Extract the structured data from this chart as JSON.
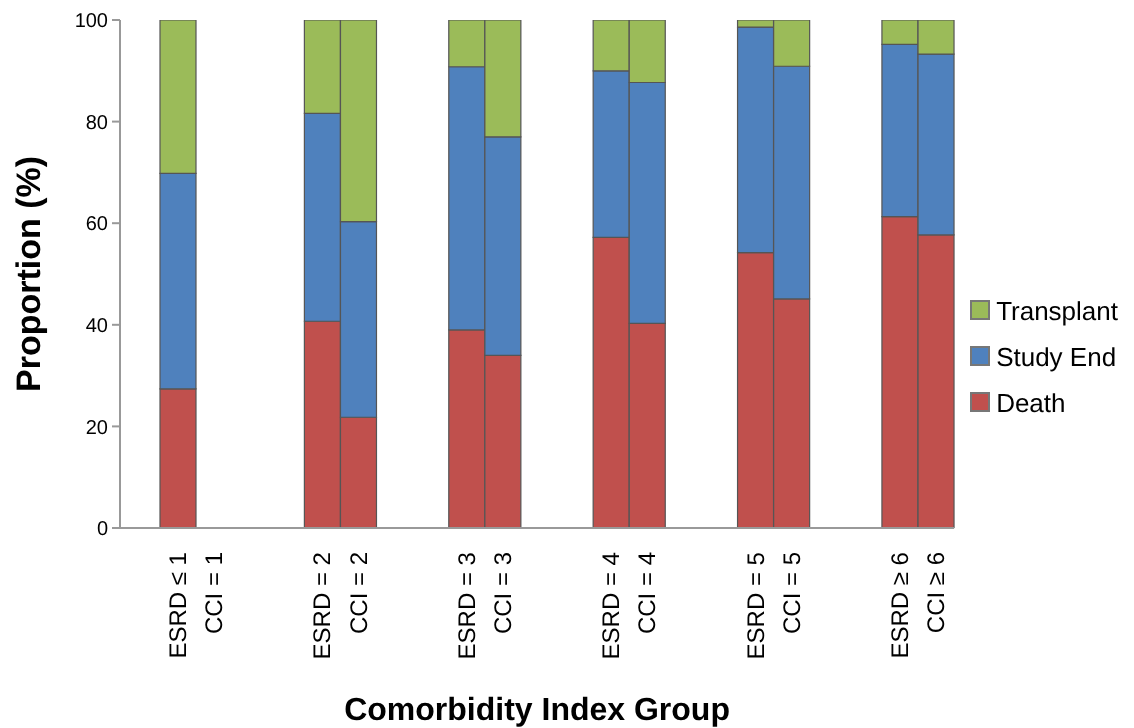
{
  "chart_data": {
    "type": "bar",
    "stacked": true,
    "xlabel": "Comorbidity Index Group",
    "ylabel": "Proportion (%)",
    "categories": [
      "ESRD ≤ 1",
      "CCI = 1",
      null,
      null,
      "ESRD = 2",
      "CCI = 2",
      null,
      null,
      "ESRD = 3",
      "CCI = 3",
      null,
      null,
      "ESRD = 4",
      "CCI = 4",
      null,
      null,
      "ESRD = 5",
      "CCI = 5",
      null,
      null,
      "ESRD ≥ 6",
      "CCI ≥ 6"
    ],
    "series": [
      {
        "name": "Death",
        "color": "#c0504d",
        "values": [
          27.4,
          null,
          null,
          null,
          40.7,
          21.8,
          null,
          null,
          39.0,
          34.0,
          null,
          null,
          57.2,
          40.3,
          null,
          null,
          54.2,
          45.1,
          null,
          null,
          61.3,
          57.7
        ]
      },
      {
        "name": "Study End",
        "color": "#4f81bd",
        "values": [
          42.4,
          null,
          null,
          null,
          40.9,
          38.5,
          null,
          null,
          51.8,
          43.0,
          null,
          null,
          32.8,
          47.4,
          null,
          null,
          44.4,
          45.8,
          null,
          null,
          33.9,
          35.6
        ]
      },
      {
        "name": "Transplant",
        "color": "#9bbb59",
        "values": [
          30.2,
          null,
          null,
          null,
          18.4,
          39.7,
          null,
          null,
          9.2,
          23.0,
          null,
          null,
          10.0,
          12.3,
          null,
          null,
          1.4,
          9.1,
          null,
          null,
          4.8,
          6.7
        ]
      }
    ],
    "ylim": [
      0,
      100
    ],
    "yticks": [
      0,
      20,
      40,
      60,
      80,
      100
    ],
    "grid": false,
    "legend": "right"
  }
}
